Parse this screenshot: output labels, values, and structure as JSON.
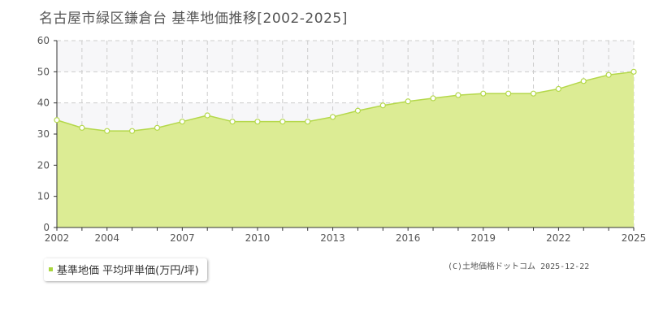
{
  "header": {
    "title": "名古屋市緑区鎌倉台 基準地価推移[2002-2025]"
  },
  "legend": {
    "label": "基準地価 平均坪単価(万円/坪)"
  },
  "footer": {
    "copyright": "(C)土地価格ドットコム 2025-12-22"
  },
  "colors": {
    "fill": "#dcec94",
    "line": "#b4d84a",
    "band": "#f7f7f9",
    "marker_fill": "#ffffff"
  },
  "chart_data": {
    "type": "area",
    "title": "名古屋市緑区鎌倉台 基準地価推移[2002-2025]",
    "xlabel": "",
    "ylabel": "",
    "ylim": [
      0,
      60
    ],
    "xlim": [
      2002,
      2025
    ],
    "yticks": [
      "0",
      "10",
      "20",
      "30",
      "40",
      "50",
      "60"
    ],
    "xticks": [
      "2002",
      "2004",
      "2007",
      "2010",
      "2013",
      "2016",
      "2019",
      "2022",
      "2025"
    ],
    "grid": true,
    "legend_position": "bottom-left",
    "series": [
      {
        "name": "基準地価 平均坪単価(万円/坪)",
        "x": [
          2002,
          2003,
          2004,
          2005,
          2006,
          2007,
          2008,
          2009,
          2010,
          2011,
          2012,
          2013,
          2014,
          2015,
          2016,
          2017,
          2018,
          2019,
          2020,
          2021,
          2022,
          2023,
          2024,
          2025
        ],
        "values": [
          34.5,
          32.0,
          31.0,
          31.0,
          32.0,
          34.0,
          36.0,
          34.0,
          34.0,
          34.0,
          34.0,
          35.5,
          37.5,
          39.2,
          40.5,
          41.5,
          42.5,
          43.0,
          43.0,
          43.0,
          44.5,
          47.0,
          49.0,
          50.0
        ]
      }
    ]
  }
}
